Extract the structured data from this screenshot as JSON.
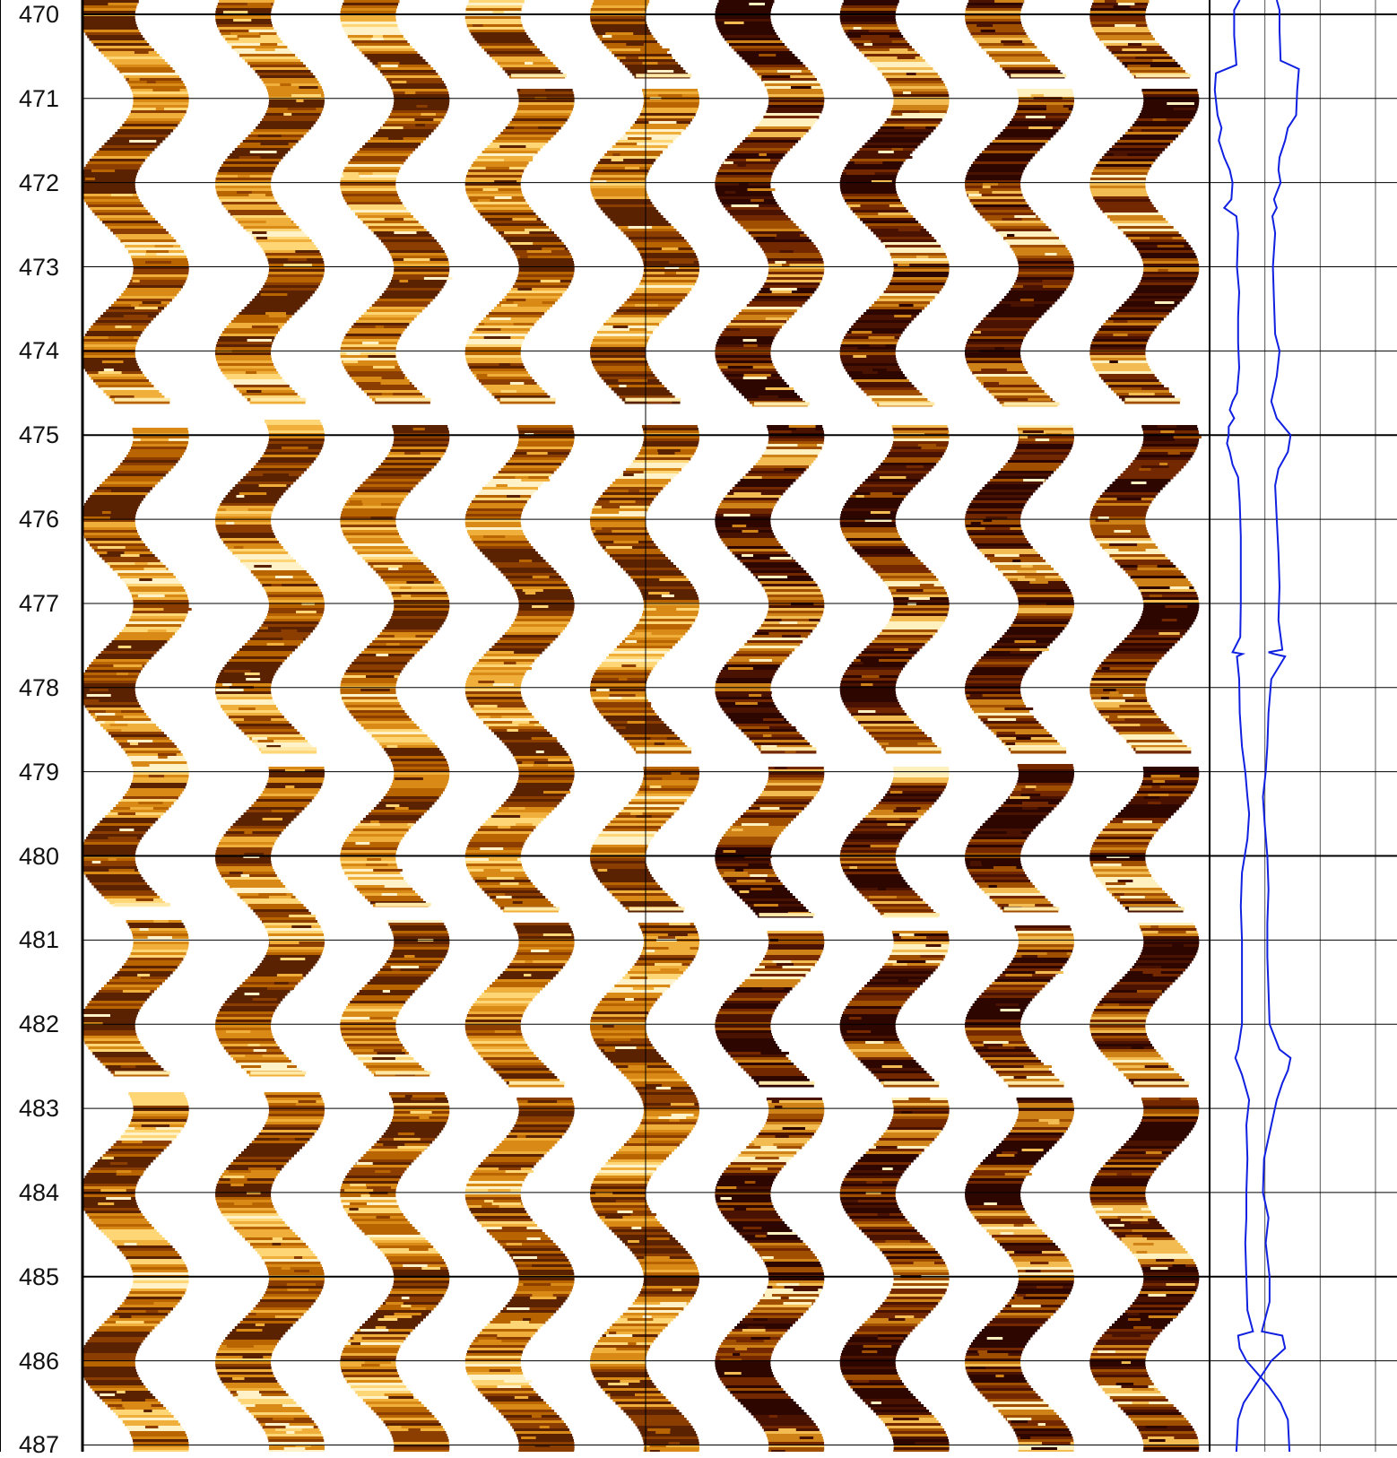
{
  "chart_data": {
    "type": "line",
    "title": "",
    "depth_axis": {
      "ticks": [
        "470",
        "471",
        "472",
        "473",
        "474",
        "475",
        "476",
        "477",
        "478",
        "479",
        "480",
        "481",
        "482",
        "483",
        "484",
        "485",
        "486",
        "487"
      ],
      "range": [
        469.83,
        487.08
      ],
      "major_every": 5
    },
    "image_tracks": [
      {
        "palette": "light",
        "gaps": [
          [
            474.6,
            474.9
          ],
          [
            480.6,
            480.75
          ],
          [
            482.6,
            482.8
          ]
        ]
      },
      {
        "palette": "light",
        "gaps": [
          [
            474.6,
            474.8
          ],
          [
            478.75,
            478.92
          ],
          [
            482.6,
            482.78
          ]
        ]
      },
      {
        "palette": "light",
        "gaps": [
          [
            474.6,
            474.85
          ],
          [
            480.6,
            480.75
          ],
          [
            482.6,
            482.78
          ]
        ]
      },
      {
        "palette": "light",
        "gaps": [
          [
            470.75,
            470.87
          ],
          [
            474.6,
            474.85
          ],
          [
            480.65,
            480.78
          ],
          [
            482.72,
            482.86
          ]
        ]
      },
      {
        "palette": "light",
        "gaps": [
          [
            470.75,
            470.87
          ],
          [
            474.6,
            474.85
          ],
          [
            478.75,
            478.92
          ],
          [
            480.65,
            480.78
          ]
        ]
      },
      {
        "palette": "dark",
        "gaps": [
          [
            474.65,
            474.85
          ],
          [
            478.75,
            478.92
          ],
          [
            480.72,
            480.87
          ],
          [
            482.72,
            482.86
          ]
        ]
      },
      {
        "palette": "dark",
        "gaps": [
          [
            474.65,
            474.85
          ],
          [
            478.75,
            478.92
          ],
          [
            480.72,
            480.87
          ],
          [
            482.72,
            482.86
          ]
        ]
      },
      {
        "palette": "dark",
        "gaps": [
          [
            470.75,
            470.87
          ],
          [
            474.65,
            474.85
          ],
          [
            478.75,
            478.9
          ],
          [
            480.65,
            480.8
          ],
          [
            482.72,
            482.86
          ]
        ]
      },
      {
        "palette": "dark",
        "gaps": [
          [
            470.75,
            470.87
          ],
          [
            474.6,
            474.85
          ],
          [
            478.75,
            478.92
          ],
          [
            480.65,
            480.78
          ],
          [
            482.72,
            482.86
          ]
        ]
      }
    ],
    "curve_track": {
      "grid_divisions": 3,
      "series": [
        {
          "color": "#1020e0",
          "points": [
            [
              469.83,
              0.48
            ],
            [
              469.95,
              0.38
            ],
            [
              470.25,
              0.38
            ],
            [
              470.6,
              0.42
            ],
            [
              470.7,
              0.05
            ],
            [
              470.9,
              0.03
            ],
            [
              471.2,
              0.08
            ],
            [
              471.35,
              0.15
            ],
            [
              471.5,
              0.1
            ],
            [
              471.7,
              0.2
            ],
            [
              471.85,
              0.3
            ],
            [
              472.0,
              0.35
            ],
            [
              472.2,
              0.33
            ],
            [
              472.3,
              0.2
            ],
            [
              472.4,
              0.42
            ],
            [
              472.6,
              0.45
            ],
            [
              473.0,
              0.43
            ],
            [
              473.3,
              0.47
            ],
            [
              473.6,
              0.45
            ],
            [
              473.9,
              0.45
            ],
            [
              474.2,
              0.47
            ],
            [
              474.5,
              0.43
            ],
            [
              474.6,
              0.35
            ],
            [
              474.7,
              0.3
            ],
            [
              474.8,
              0.38
            ],
            [
              474.9,
              0.28
            ],
            [
              475.0,
              0.28
            ],
            [
              475.1,
              0.25
            ],
            [
              475.2,
              0.3
            ],
            [
              475.35,
              0.35
            ],
            [
              475.5,
              0.45
            ],
            [
              475.8,
              0.48
            ],
            [
              476.2,
              0.5
            ],
            [
              476.6,
              0.5
            ],
            [
              477.0,
              0.5
            ],
            [
              477.4,
              0.49
            ],
            [
              477.58,
              0.35
            ],
            [
              477.6,
              0.53
            ],
            [
              477.63,
              0.43
            ],
            [
              477.9,
              0.47
            ],
            [
              478.3,
              0.48
            ],
            [
              478.7,
              0.52
            ],
            [
              479.0,
              0.58
            ],
            [
              479.3,
              0.62
            ],
            [
              479.5,
              0.65
            ],
            [
              479.8,
              0.62
            ],
            [
              480.2,
              0.52
            ],
            [
              480.6,
              0.5
            ],
            [
              481.0,
              0.52
            ],
            [
              481.5,
              0.52
            ],
            [
              482.0,
              0.52
            ],
            [
              482.3,
              0.45
            ],
            [
              482.4,
              0.4
            ],
            [
              482.6,
              0.52
            ],
            [
              482.9,
              0.65
            ],
            [
              483.2,
              0.6
            ],
            [
              483.6,
              0.62
            ],
            [
              484.0,
              0.6
            ],
            [
              484.3,
              0.6
            ],
            [
              484.6,
              0.58
            ],
            [
              485.0,
              0.6
            ],
            [
              485.4,
              0.62
            ],
            [
              485.65,
              0.72
            ],
            [
              485.7,
              0.45
            ],
            [
              485.85,
              0.48
            ],
            [
              486.0,
              0.6
            ],
            [
              486.15,
              0.8
            ],
            [
              486.3,
              1.0
            ],
            [
              486.5,
              1.22
            ],
            [
              486.7,
              1.35
            ],
            [
              487.08,
              1.38
            ]
          ]
        },
        {
          "color": "#1020e0",
          "points": [
            [
              469.83,
              1.15
            ],
            [
              469.95,
              1.2
            ],
            [
              470.2,
              1.2
            ],
            [
              470.55,
              1.22
            ],
            [
              470.65,
              1.55
            ],
            [
              470.9,
              1.52
            ],
            [
              471.2,
              1.5
            ],
            [
              471.35,
              1.35
            ],
            [
              471.5,
              1.3
            ],
            [
              471.7,
              1.2
            ],
            [
              471.85,
              1.18
            ],
            [
              472.0,
              1.22
            ],
            [
              472.2,
              1.1
            ],
            [
              472.3,
              1.15
            ],
            [
              472.4,
              1.07
            ],
            [
              472.6,
              1.12
            ],
            [
              473.0,
              1.08
            ],
            [
              473.4,
              1.1
            ],
            [
              473.8,
              1.12
            ],
            [
              474.0,
              1.2
            ],
            [
              474.3,
              1.15
            ],
            [
              474.6,
              1.05
            ],
            [
              474.8,
              1.15
            ],
            [
              475.0,
              1.4
            ],
            [
              475.2,
              1.35
            ],
            [
              475.4,
              1.18
            ],
            [
              475.6,
              1.12
            ],
            [
              476.0,
              1.15
            ],
            [
              476.4,
              1.18
            ],
            [
              476.8,
              1.2
            ],
            [
              477.2,
              1.18
            ],
            [
              477.55,
              1.25
            ],
            [
              477.58,
              1.0
            ],
            [
              477.6,
              1.1
            ],
            [
              477.63,
              1.3
            ],
            [
              477.9,
              1.05
            ],
            [
              478.3,
              1.0
            ],
            [
              478.7,
              0.98
            ],
            [
              479.0,
              0.95
            ],
            [
              479.3,
              0.9
            ],
            [
              479.6,
              0.93
            ],
            [
              480.0,
              0.98
            ],
            [
              480.4,
              1.0
            ],
            [
              480.8,
              0.98
            ],
            [
              481.2,
              0.98
            ],
            [
              481.6,
              1.0
            ],
            [
              482.0,
              1.02
            ],
            [
              482.3,
              1.2
            ],
            [
              482.4,
              1.4
            ],
            [
              482.55,
              1.35
            ],
            [
              482.7,
              1.25
            ],
            [
              482.9,
              1.15
            ],
            [
              483.2,
              1.05
            ],
            [
              483.6,
              0.92
            ],
            [
              484.0,
              0.9
            ],
            [
              484.3,
              1.0
            ],
            [
              484.6,
              0.95
            ],
            [
              485.0,
              1.02
            ],
            [
              485.3,
              1.02
            ],
            [
              485.65,
              0.88
            ],
            [
              485.7,
              1.25
            ],
            [
              485.85,
              1.3
            ],
            [
              486.0,
              1.05
            ],
            [
              486.15,
              0.9
            ],
            [
              486.3,
              0.75
            ],
            [
              486.5,
              0.55
            ],
            [
              486.7,
              0.45
            ],
            [
              487.08,
              0.42
            ]
          ]
        }
      ]
    }
  },
  "colors": {
    "light_palette": [
      "#5a2200",
      "#8c3e00",
      "#b86400",
      "#d98a16",
      "#f0ae3a",
      "#ffd676",
      "#fff2c8"
    ],
    "dark_palette": [
      "#2e0600",
      "#4a1200",
      "#742800",
      "#a04e00",
      "#cf8218",
      "#f2bc52",
      "#fff0c0"
    ],
    "grid": "#000000",
    "curve": "#1020e0"
  }
}
